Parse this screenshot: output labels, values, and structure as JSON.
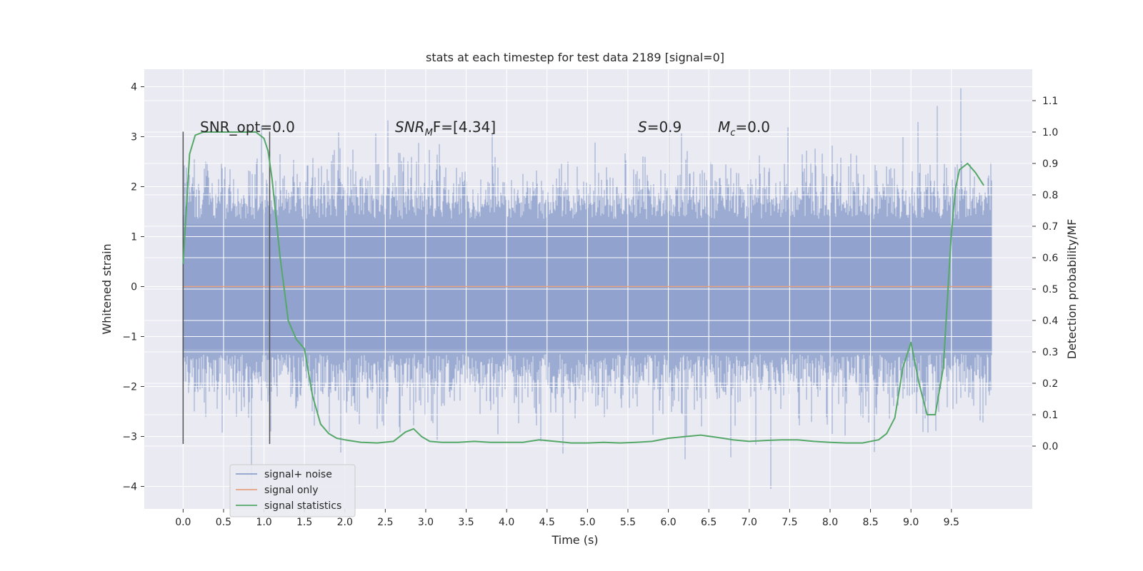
{
  "chart_data": {
    "type": "line",
    "title": "stats at each timestep for test data 2189 [signal=0]",
    "xlabel": "Time (s)",
    "ylabel_left": "Whitened strain",
    "ylabel_right": "Detection probability/MF",
    "xlim": [
      -0.48,
      10.5
    ],
    "ylim_left": [
      -4.45,
      4.35
    ],
    "ylim_right": [
      -0.2,
      1.2
    ],
    "x_ticks": [
      "0.0",
      "0.5",
      "1.0",
      "1.5",
      "2.0",
      "2.5",
      "3.0",
      "3.5",
      "4.0",
      "4.5",
      "5.0",
      "5.5",
      "6.0",
      "6.5",
      "7.0",
      "7.5",
      "8.0",
      "8.5",
      "9.0",
      "9.5"
    ],
    "y_ticks_left": [
      "4",
      "3",
      "2",
      "1",
      "0",
      "−1",
      "−2",
      "−3",
      "−4"
    ],
    "y_ticks_right": [
      "1.1",
      "1.0",
      "0.9",
      "0.8",
      "0.7",
      "0.6",
      "0.5",
      "0.4",
      "0.3",
      "0.2",
      "0.1",
      "0.0"
    ],
    "grid": true,
    "legend_position": "lower-left",
    "annotations": {
      "snr_opt": "SNR_opt=0.0",
      "snr_mf_label": "SNR",
      "snr_mf_sub": "M",
      "snr_mf_suffix": "F=[4.34]",
      "s_label": "S",
      "s_value": "=0.9",
      "mc_label": "M",
      "mc_sub": "c",
      "mc_value": "=0.0"
    },
    "vertical_markers": [
      0.0,
      1.07
    ],
    "series": [
      {
        "name": "signal+ noise",
        "color": "#8da0cb",
        "axis": "left",
        "x_range": [
          0.0,
          10.0
        ],
        "description_values": {
          "typical_abs_max": 1.25,
          "extreme_max": 3.97,
          "extreme_min": -4.05
        }
      },
      {
        "name": "signal only",
        "color": "#e8a07e",
        "axis": "left",
        "x": [
          0.0,
          10.0
        ],
        "y": [
          0.0,
          0.0
        ]
      },
      {
        "name": "signal statistics",
        "color": "#55a868",
        "axis": "right",
        "x": [
          0.0,
          0.08,
          0.15,
          0.25,
          0.4,
          0.6,
          0.8,
          0.9,
          1.0,
          1.05,
          1.1,
          1.2,
          1.3,
          1.4,
          1.5,
          1.6,
          1.7,
          1.8,
          1.9,
          2.0,
          2.2,
          2.4,
          2.6,
          2.75,
          2.85,
          2.95,
          3.05,
          3.2,
          3.4,
          3.6,
          3.8,
          4.0,
          4.2,
          4.4,
          4.6,
          4.8,
          5.0,
          5.2,
          5.4,
          5.6,
          5.8,
          6.0,
          6.2,
          6.4,
          6.6,
          6.8,
          7.0,
          7.2,
          7.4,
          7.6,
          7.8,
          8.0,
          8.2,
          8.4,
          8.6,
          8.7,
          8.8,
          8.9,
          9.0,
          9.1,
          9.2,
          9.3,
          9.4,
          9.5,
          9.55,
          9.6,
          9.7,
          9.8,
          9.9
        ],
        "y": [
          0.58,
          0.93,
          0.99,
          1.0,
          1.0,
          1.0,
          1.0,
          1.0,
          0.98,
          0.94,
          0.85,
          0.6,
          0.4,
          0.34,
          0.31,
          0.16,
          0.07,
          0.04,
          0.025,
          0.02,
          0.012,
          0.01,
          0.015,
          0.045,
          0.055,
          0.03,
          0.015,
          0.012,
          0.012,
          0.015,
          0.012,
          0.012,
          0.012,
          0.02,
          0.015,
          0.01,
          0.01,
          0.012,
          0.01,
          0.012,
          0.015,
          0.025,
          0.03,
          0.035,
          0.028,
          0.02,
          0.015,
          0.018,
          0.02,
          0.02,
          0.015,
          0.012,
          0.01,
          0.01,
          0.02,
          0.04,
          0.09,
          0.25,
          0.33,
          0.2,
          0.1,
          0.1,
          0.25,
          0.68,
          0.82,
          0.88,
          0.9,
          0.87,
          0.83
        ]
      }
    ]
  }
}
